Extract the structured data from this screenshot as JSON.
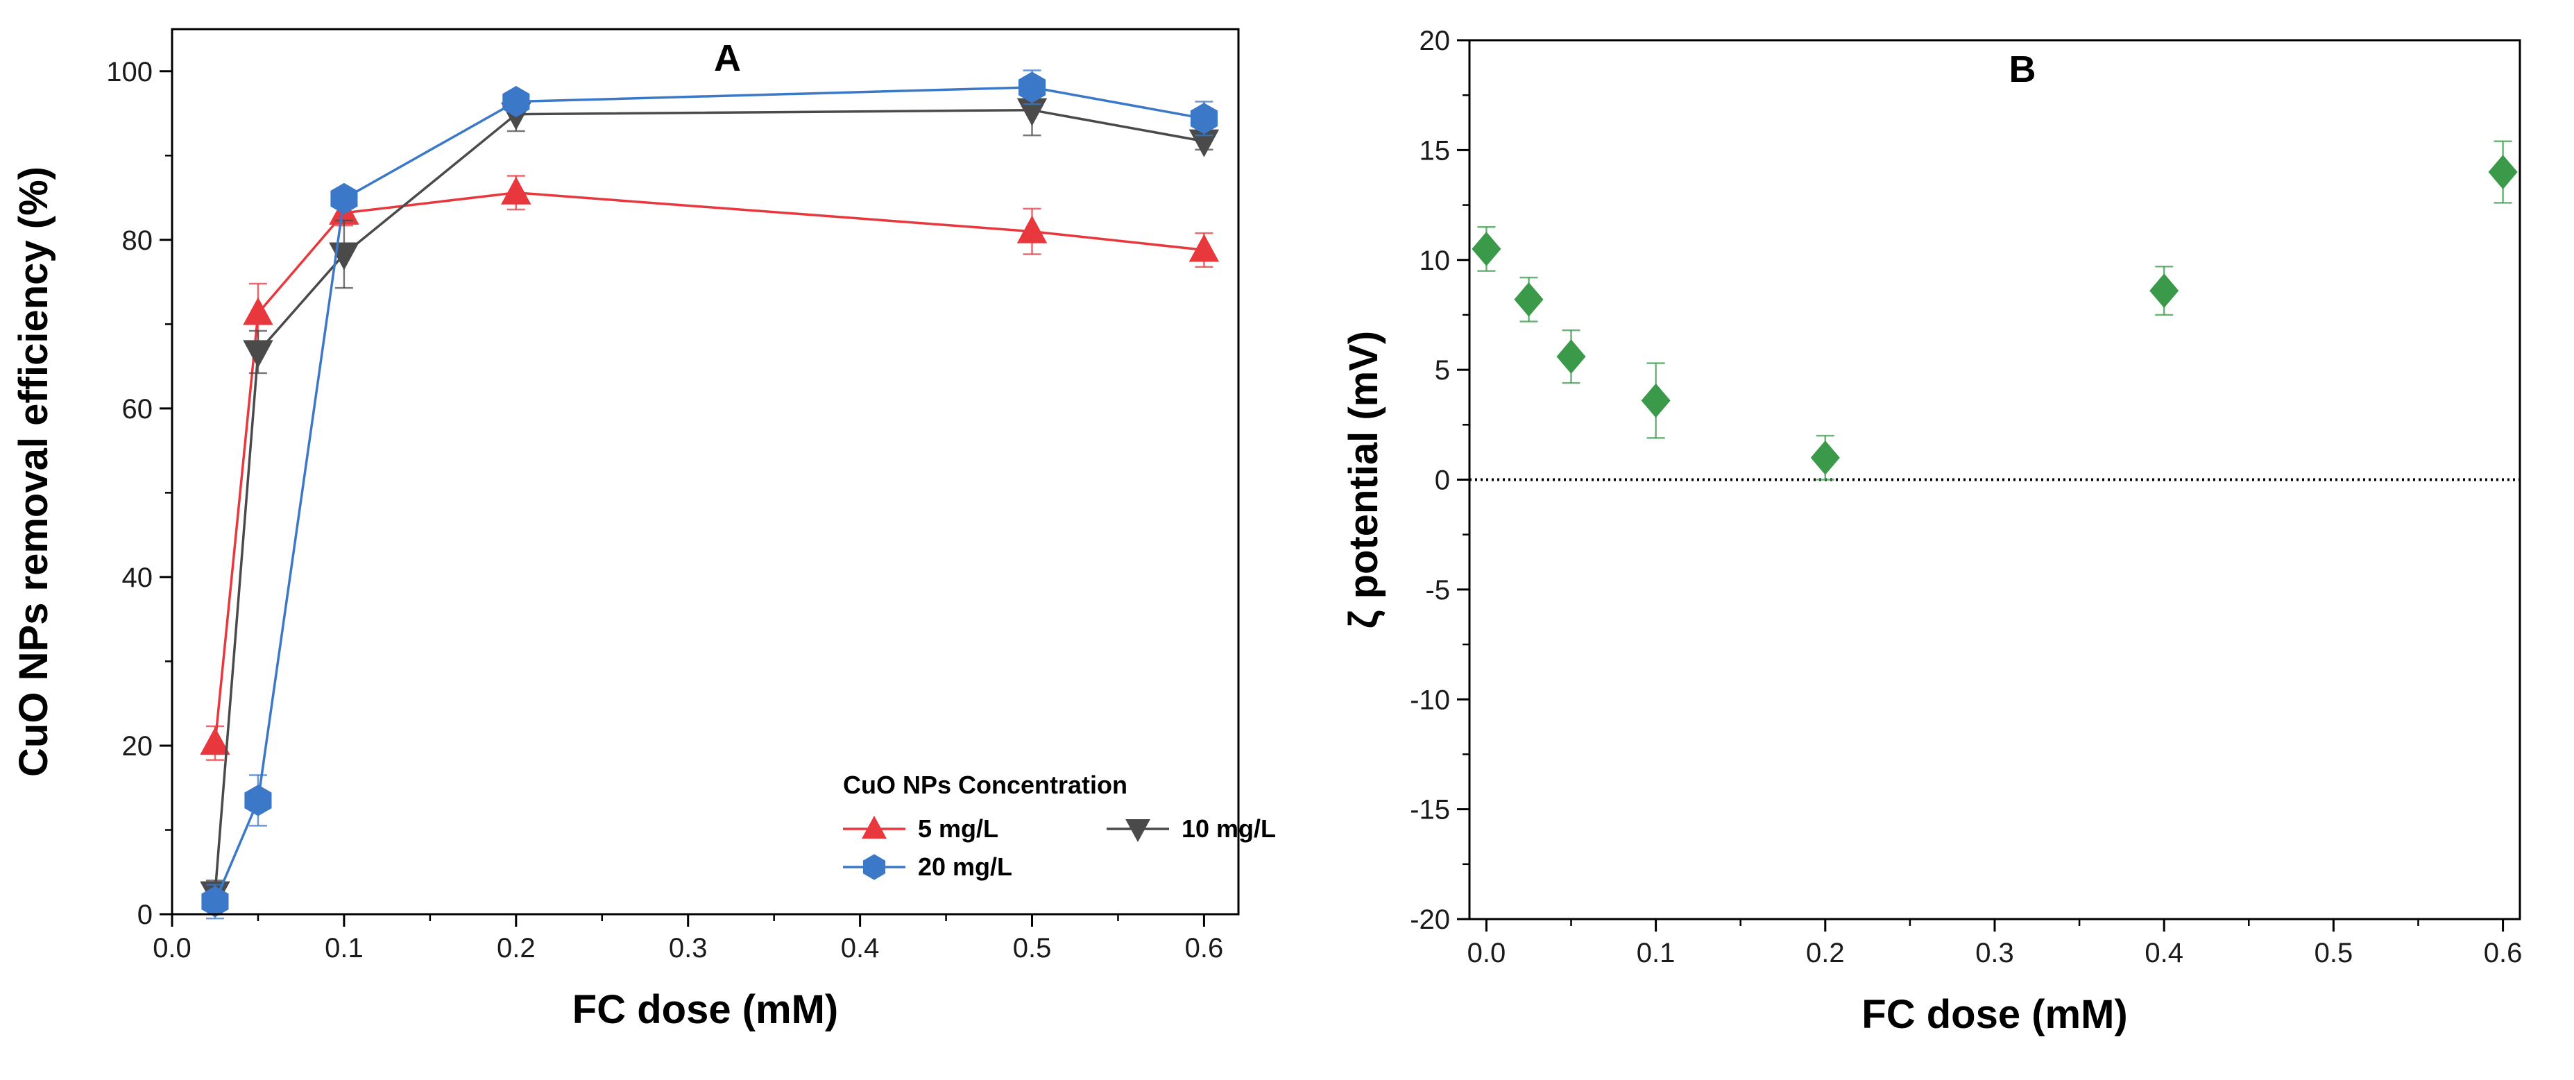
{
  "chart_data": [
    {
      "panel": "A",
      "type": "line",
      "title": "A",
      "xlabel": "FC dose (mM)",
      "ylabel": "CuO NPs removal efficiency (%)",
      "xlim": [
        0.0,
        0.62
      ],
      "ylim": [
        0,
        105
      ],
      "xticks": [
        "0.0",
        "0.1",
        "0.2",
        "0.3",
        "0.4",
        "0.5",
        "0.6"
      ],
      "yticks": [
        "0",
        "20",
        "40",
        "60",
        "80",
        "100"
      ],
      "legend_title": "CuO NPs Concentration",
      "legend_position": "bottom-right",
      "series": [
        {
          "name": "5 mg/L",
          "color": "#e8383d",
          "marker": "triangle-up",
          "x": [
            0.025,
            0.05,
            0.1,
            0.2,
            0.5,
            0.6
          ],
          "values": [
            20.3,
            71.3,
            83.2,
            85.6,
            81.0,
            78.8
          ],
          "errors": [
            2.0,
            3.5,
            1.5,
            2.0,
            2.7,
            2.0
          ]
        },
        {
          "name": "10 mg/L",
          "color": "#4a4a4a",
          "marker": "triangle-down",
          "x": [
            0.025,
            0.05,
            0.1,
            0.2,
            0.5,
            0.6
          ],
          "values": [
            2.5,
            66.7,
            78.3,
            94.9,
            95.4,
            91.7
          ],
          "errors": [
            1.5,
            2.5,
            4.0,
            2.0,
            3.0,
            1.0
          ]
        },
        {
          "name": "20 mg/L",
          "color": "#3b78c7",
          "marker": "hexagon",
          "x": [
            0.025,
            0.05,
            0.1,
            0.2,
            0.5,
            0.6
          ],
          "values": [
            1.5,
            13.5,
            84.9,
            96.4,
            98.1,
            94.4
          ],
          "errors": [
            2.0,
            3.0,
            1.0,
            1.0,
            2.0,
            2.0
          ]
        }
      ]
    },
    {
      "panel": "B",
      "type": "scatter",
      "title": "B",
      "xlabel": "FC dose (mM)",
      "ylabel": "ζ potential (mV)",
      "xlim": [
        -0.01,
        0.61
      ],
      "ylim": [
        -20,
        20
      ],
      "xticks": [
        "0.0",
        "0.1",
        "0.2",
        "0.3",
        "0.4",
        "0.5",
        "0.6"
      ],
      "yticks": [
        "-20",
        "-15",
        "-10",
        "-5",
        "0",
        "5",
        "10",
        "15",
        "20"
      ],
      "reference_line": {
        "y": 0,
        "style": "dotted"
      },
      "series": [
        {
          "name": "ζ potential",
          "color": "#3a9a4a",
          "marker": "diamond",
          "x": [
            0.0,
            0.025,
            0.05,
            0.1,
            0.2,
            0.4,
            0.6
          ],
          "values": [
            10.5,
            8.2,
            5.6,
            3.6,
            1.0,
            8.6,
            14.0
          ],
          "errors": [
            1.0,
            1.0,
            1.2,
            1.7,
            1.0,
            1.1,
            1.4
          ]
        }
      ]
    }
  ]
}
